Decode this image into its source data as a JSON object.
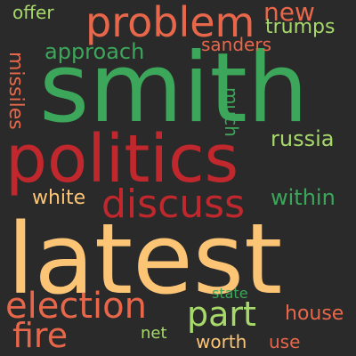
{
  "palette": {
    "background": "#2a2a2a",
    "red": "#c1282d",
    "orange": "#e8674b",
    "peach": "#fcc576",
    "green": "#3ca75a",
    "light_green": "#a6d96a"
  },
  "words": {
    "latest": {
      "text": "latest",
      "color": "#fcc576"
    },
    "smith": {
      "text": "smith",
      "color": "#3ca75a"
    },
    "politics": {
      "text": "politics",
      "color": "#c1282d"
    },
    "problem": {
      "text": "problem",
      "color": "#e8674b"
    },
    "discuss": {
      "text": "discuss",
      "color": "#c1282d"
    },
    "election": {
      "text": "election",
      "color": "#e8674b"
    },
    "part": {
      "text": "part",
      "color": "#a6d96a"
    },
    "fire": {
      "text": "fire",
      "color": "#e8674b"
    },
    "new": {
      "text": "new",
      "color": "#e8674b"
    },
    "russia": {
      "text": "russia",
      "color": "#a6d96a"
    },
    "within": {
      "text": "within",
      "color": "#3ca75a"
    },
    "approach": {
      "text": "approach",
      "color": "#3ca75a"
    },
    "trumps": {
      "text": "trumps",
      "color": "#a6d96a"
    },
    "sanders": {
      "text": "sanders",
      "color": "#e8674b"
    },
    "house": {
      "text": "house",
      "color": "#e8674b"
    },
    "white": {
      "text": "white",
      "color": "#fcc576"
    },
    "offer": {
      "text": "offer",
      "color": "#a6d96a"
    },
    "worth": {
      "text": "worth",
      "color": "#fcc576"
    },
    "use": {
      "text": "use",
      "color": "#e8674b"
    },
    "net": {
      "text": "net",
      "color": "#a6d96a"
    },
    "state": {
      "text": "state",
      "color": "#3ca75a"
    },
    "missiles": {
      "text": "missiles",
      "color": "#e8674b"
    },
    "much": {
      "text": "much",
      "color": "#3ca75a"
    }
  }
}
